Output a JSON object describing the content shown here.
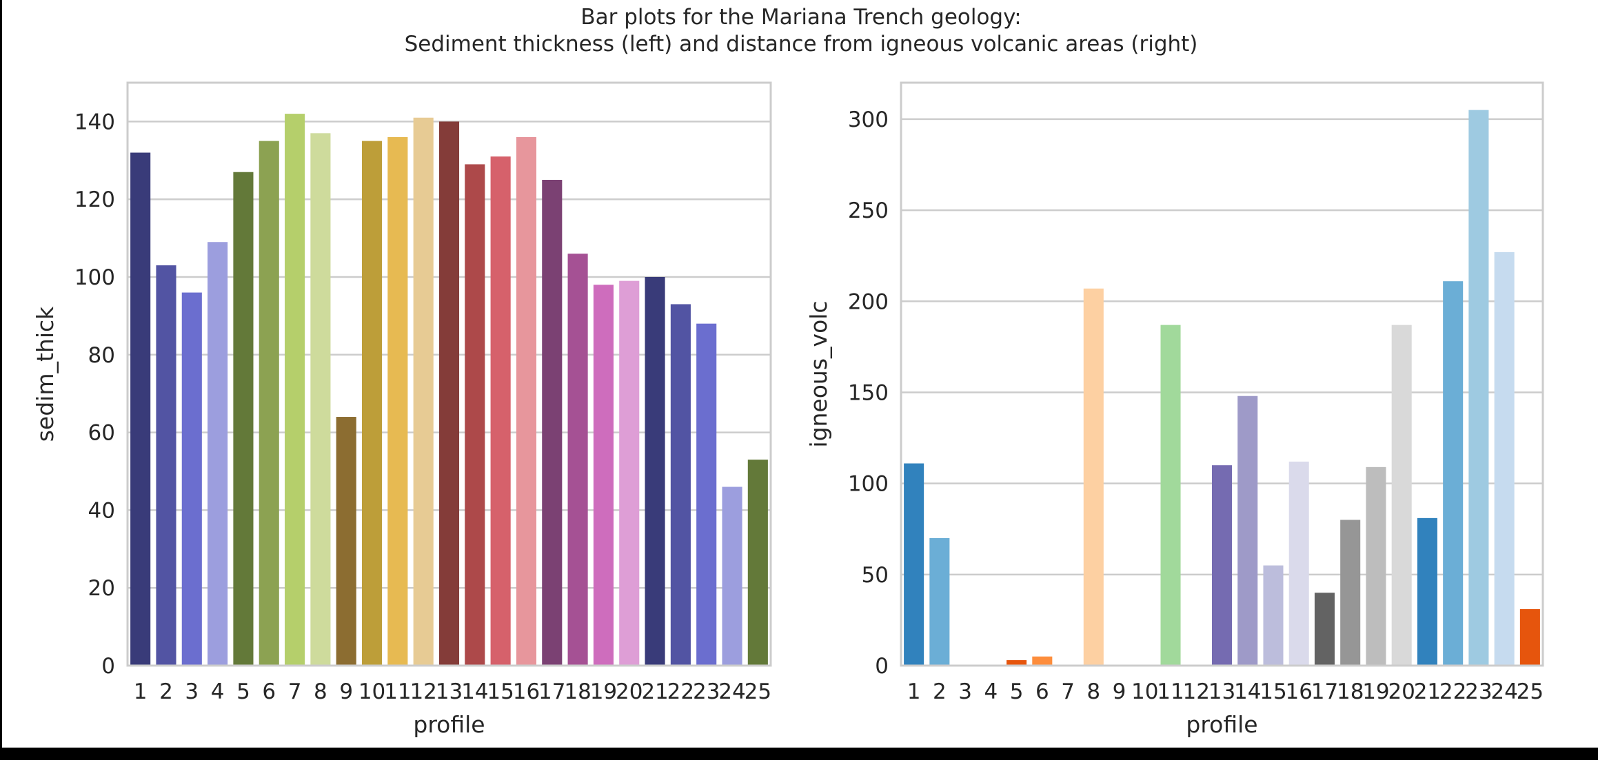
{
  "figure": {
    "title_line1": "Bar plots for the Mariana Trench geology:",
    "title_line2": "Sediment thickness (left) and distance from igneous volcanic areas (right)"
  },
  "chart_data": [
    {
      "type": "bar",
      "xlabel": "profile",
      "ylabel": "sedim_thick",
      "categories": [
        "1",
        "2",
        "3",
        "4",
        "5",
        "6",
        "7",
        "8",
        "9",
        "10",
        "11",
        "12",
        "13",
        "14",
        "15",
        "16",
        "17",
        "18",
        "19",
        "20",
        "21",
        "22",
        "23",
        "24",
        "25"
      ],
      "values": [
        132,
        103,
        96,
        109,
        127,
        135,
        142,
        137,
        64,
        135,
        136,
        141,
        140,
        129,
        131,
        136,
        125,
        106,
        98,
        99,
        100,
        93,
        88,
        46,
        53
      ],
      "ylim": [
        0,
        150
      ],
      "yticks": [
        0,
        20,
        40,
        60,
        80,
        100,
        120,
        140
      ],
      "grid": true,
      "colors": [
        "#393b79",
        "#5254a3",
        "#6b6ecf",
        "#9c9ede",
        "#637939",
        "#8ca252",
        "#b5cf6b",
        "#cedb9c",
        "#8c6d31",
        "#bd9e39",
        "#e7ba52",
        "#e7cb94",
        "#843c39",
        "#ad494a",
        "#d6616b",
        "#e7969c",
        "#7b4173",
        "#a55194",
        "#ce6dbd",
        "#de9ed6",
        "#393b79",
        "#5254a3",
        "#6b6ecf",
        "#9c9ede",
        "#637939"
      ]
    },
    {
      "type": "bar",
      "xlabel": "profile",
      "ylabel": "igneous_volc",
      "categories": [
        "1",
        "2",
        "3",
        "4",
        "5",
        "6",
        "7",
        "8",
        "9",
        "10",
        "11",
        "12",
        "13",
        "14",
        "15",
        "16",
        "17",
        "18",
        "19",
        "20",
        "21",
        "22",
        "23",
        "24",
        "25"
      ],
      "values": [
        111,
        70,
        0,
        0,
        3,
        5,
        0,
        207,
        0,
        0,
        187,
        0,
        110,
        148,
        55,
        112,
        40,
        80,
        109,
        187,
        81,
        211,
        305,
        227,
        31
      ],
      "ylim": [
        0,
        320
      ],
      "yticks": [
        0,
        50,
        100,
        150,
        200,
        250,
        300
      ],
      "grid": true,
      "colors": [
        "#3182bd",
        "#6baed6",
        "#9ecae1",
        "#c6dbef",
        "#e6550d",
        "#fd8d3c",
        "#fdae6b",
        "#fdd0a2",
        "#31a354",
        "#74c476",
        "#a1d99b",
        "#c7e9c0",
        "#756bb1",
        "#9e9ac8",
        "#bcbddc",
        "#dadaeb",
        "#636363",
        "#969696",
        "#bdbdbd",
        "#d9d9d9",
        "#3182bd",
        "#6baed6",
        "#9ecae1",
        "#c6dbef",
        "#e6550d"
      ]
    }
  ]
}
